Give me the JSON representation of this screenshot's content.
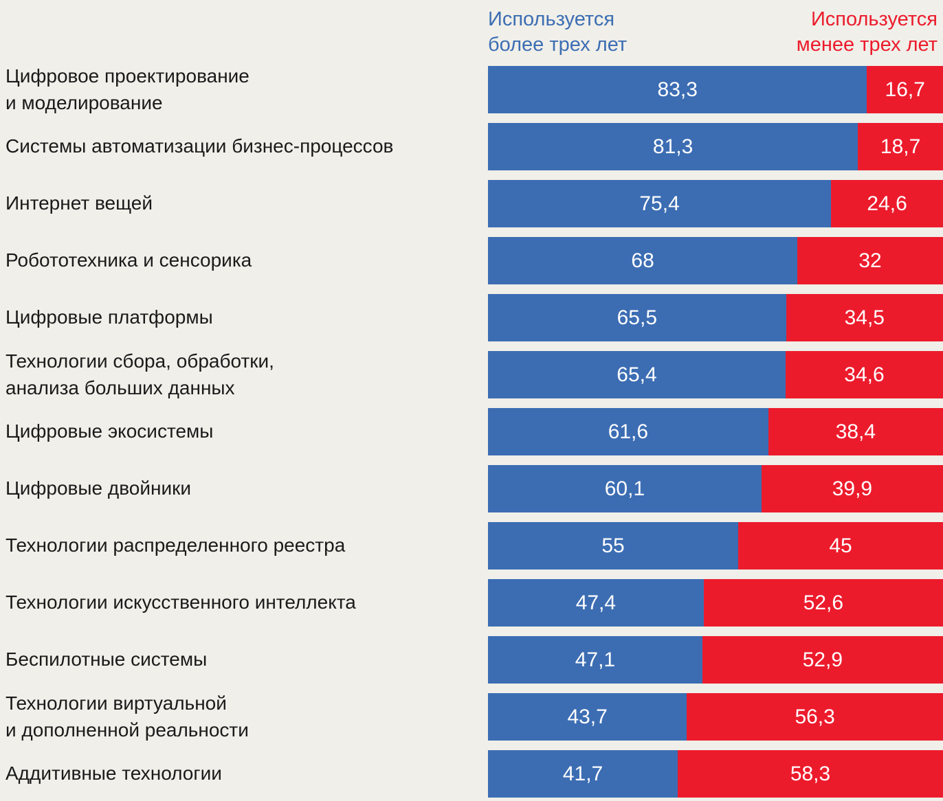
{
  "page": {
    "background": "#f0efe9",
    "label_color": "#1a1a1a"
  },
  "colors": {
    "blue": "#3c6db3",
    "red": "#ec1b2c",
    "value_text": "#ffffff"
  },
  "legend": {
    "more": "Используется\nболее трех лет",
    "less": "Используется\nменее трех лет"
  },
  "chart_data": {
    "type": "bar",
    "orientation": "horizontal",
    "stacked": true,
    "value_labels": true,
    "xlim": [
      0,
      100
    ],
    "grid": false,
    "legend_position": "top",
    "categories": [
      "Цифровое проектирование\nи моделирование",
      "Системы автоматизации бизнес-процессов",
      "Интернет вещей",
      "Робототехника и сенсорика",
      "Цифровые платформы",
      "Технологии сбора, обработки,\nанализа больших данных",
      "Цифровые экосистемы",
      "Цифровые двойники",
      "Технологии распределенного реестра",
      "Технологии искусственного интеллекта",
      "Беспилотные системы",
      "Технологии виртуальной\nи дополненной реальности",
      "Аддитивные технологии"
    ],
    "series": [
      {
        "name": "Используется более трех лет",
        "color": "#3c6db3",
        "values": [
          83.3,
          81.3,
          75.4,
          68,
          65.5,
          65.4,
          61.6,
          60.1,
          55,
          47.4,
          47.1,
          43.7,
          41.7
        ]
      },
      {
        "name": "Используется менее трех лет",
        "color": "#ec1b2c",
        "values": [
          16.7,
          18.7,
          24.6,
          32,
          34.5,
          34.6,
          38.4,
          39.9,
          45,
          52.6,
          52.9,
          56.3,
          58.3
        ]
      }
    ]
  }
}
